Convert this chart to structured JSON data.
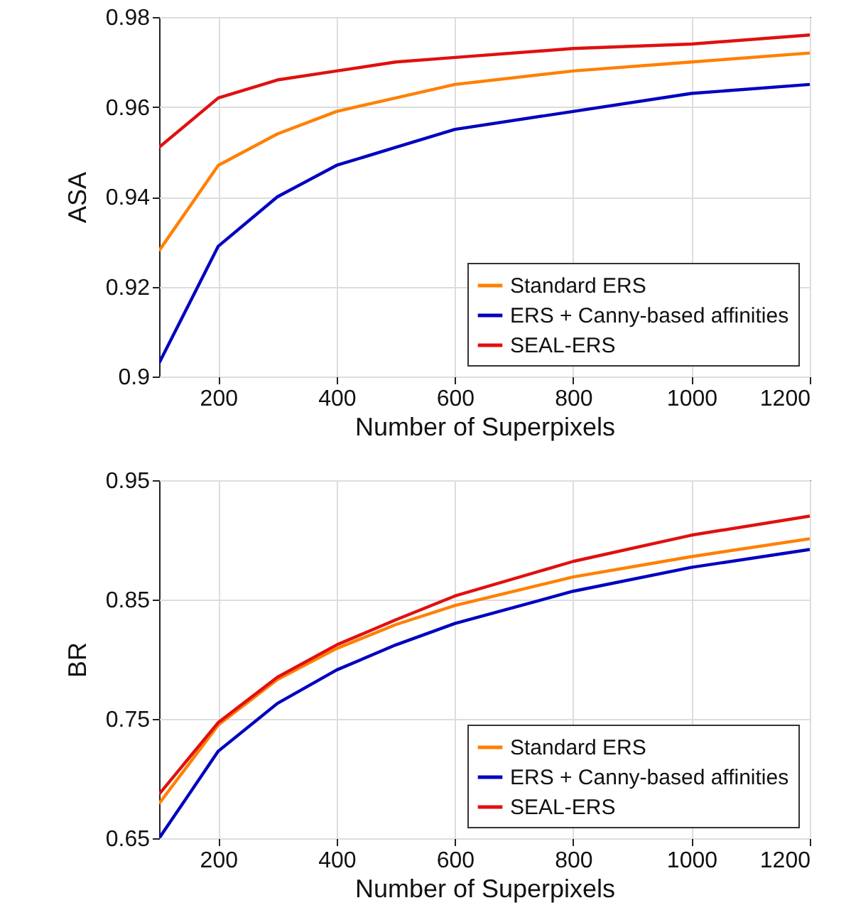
{
  "chart_data": [
    {
      "type": "line",
      "xlabel": "Number of Superpixels",
      "ylabel": "ASA",
      "x": [
        100,
        200,
        300,
        400,
        500,
        600,
        800,
        1000,
        1200
      ],
      "xlim": [
        100,
        1200
      ],
      "xticks": [
        200,
        400,
        600,
        800,
        1000,
        1200
      ],
      "ylim": [
        0.9,
        0.98
      ],
      "yticks": [
        0.9,
        0.92,
        0.94,
        0.96,
        0.98
      ],
      "grid": true,
      "legend": "bottom right",
      "line_style": "solid",
      "series": [
        {
          "name": "Standard ERS",
          "color": "#ff8000",
          "values": [
            0.928,
            0.947,
            0.954,
            0.959,
            0.962,
            0.965,
            0.968,
            0.97,
            0.972
          ]
        },
        {
          "name": "ERS + Canny-based affinities",
          "color": "#0000c0",
          "values": [
            0.903,
            0.929,
            0.94,
            0.947,
            0.951,
            0.955,
            0.959,
            0.963,
            0.965
          ]
        },
        {
          "name": "SEAL-ERS",
          "color": "#e01010",
          "values": [
            0.951,
            0.962,
            0.966,
            0.968,
            0.97,
            0.971,
            0.973,
            0.974,
            0.976
          ]
        }
      ]
    },
    {
      "type": "line",
      "xlabel": "Number of Superpixels",
      "ylabel": "BR",
      "x": [
        100,
        200,
        300,
        400,
        500,
        600,
        800,
        1000,
        1200
      ],
      "xlim": [
        100,
        1200
      ],
      "xticks": [
        200,
        400,
        600,
        800,
        1000,
        1200
      ],
      "ylim": [
        0.65,
        0.95
      ],
      "yticks": [
        0.65,
        0.75,
        0.85,
        0.95
      ],
      "grid": true,
      "legend": "bottom right",
      "line_style": "solid",
      "series": [
        {
          "name": "Standard ERS",
          "color": "#ff8000",
          "values": [
            0.679,
            0.745,
            0.783,
            0.809,
            0.829,
            0.845,
            0.869,
            0.886,
            0.901
          ]
        },
        {
          "name": "ERS + Canny-based affinities",
          "color": "#0000c0",
          "values": [
            0.65,
            0.723,
            0.763,
            0.791,
            0.812,
            0.83,
            0.857,
            0.877,
            0.892
          ]
        },
        {
          "name": "SEAL-ERS",
          "color": "#e01010",
          "values": [
            0.687,
            0.747,
            0.785,
            0.812,
            0.833,
            0.853,
            0.882,
            0.904,
            0.92
          ]
        }
      ]
    }
  ]
}
